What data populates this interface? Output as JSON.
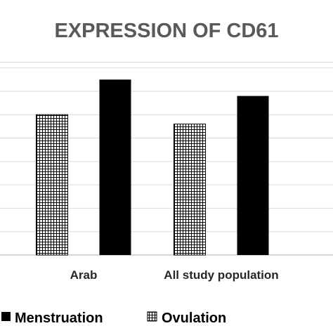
{
  "chart_data": {
    "type": "bar",
    "title": "EXPRESSION OF CD61",
    "categories": [
      "Arab",
      "All study population"
    ],
    "series": [
      {
        "name": "Ovulation",
        "values": [
          6.0,
          5.6
        ],
        "pattern": "grid"
      },
      {
        "name": "Menstruation",
        "values": [
          7.5,
          6.8
        ],
        "pattern": "solid"
      }
    ],
    "ylim": [
      0,
      8.5
    ],
    "y_gridlines": [
      1,
      2,
      3,
      4,
      5,
      6,
      7,
      8
    ],
    "grid": true,
    "legend_position": "bottom",
    "legend_order": [
      "Menstruation",
      "Ovulation"
    ],
    "colors": {
      "bar": "#000000",
      "grid": "#d9d9d9",
      "title": "#595959",
      "axis": "#bfbfbf"
    }
  }
}
